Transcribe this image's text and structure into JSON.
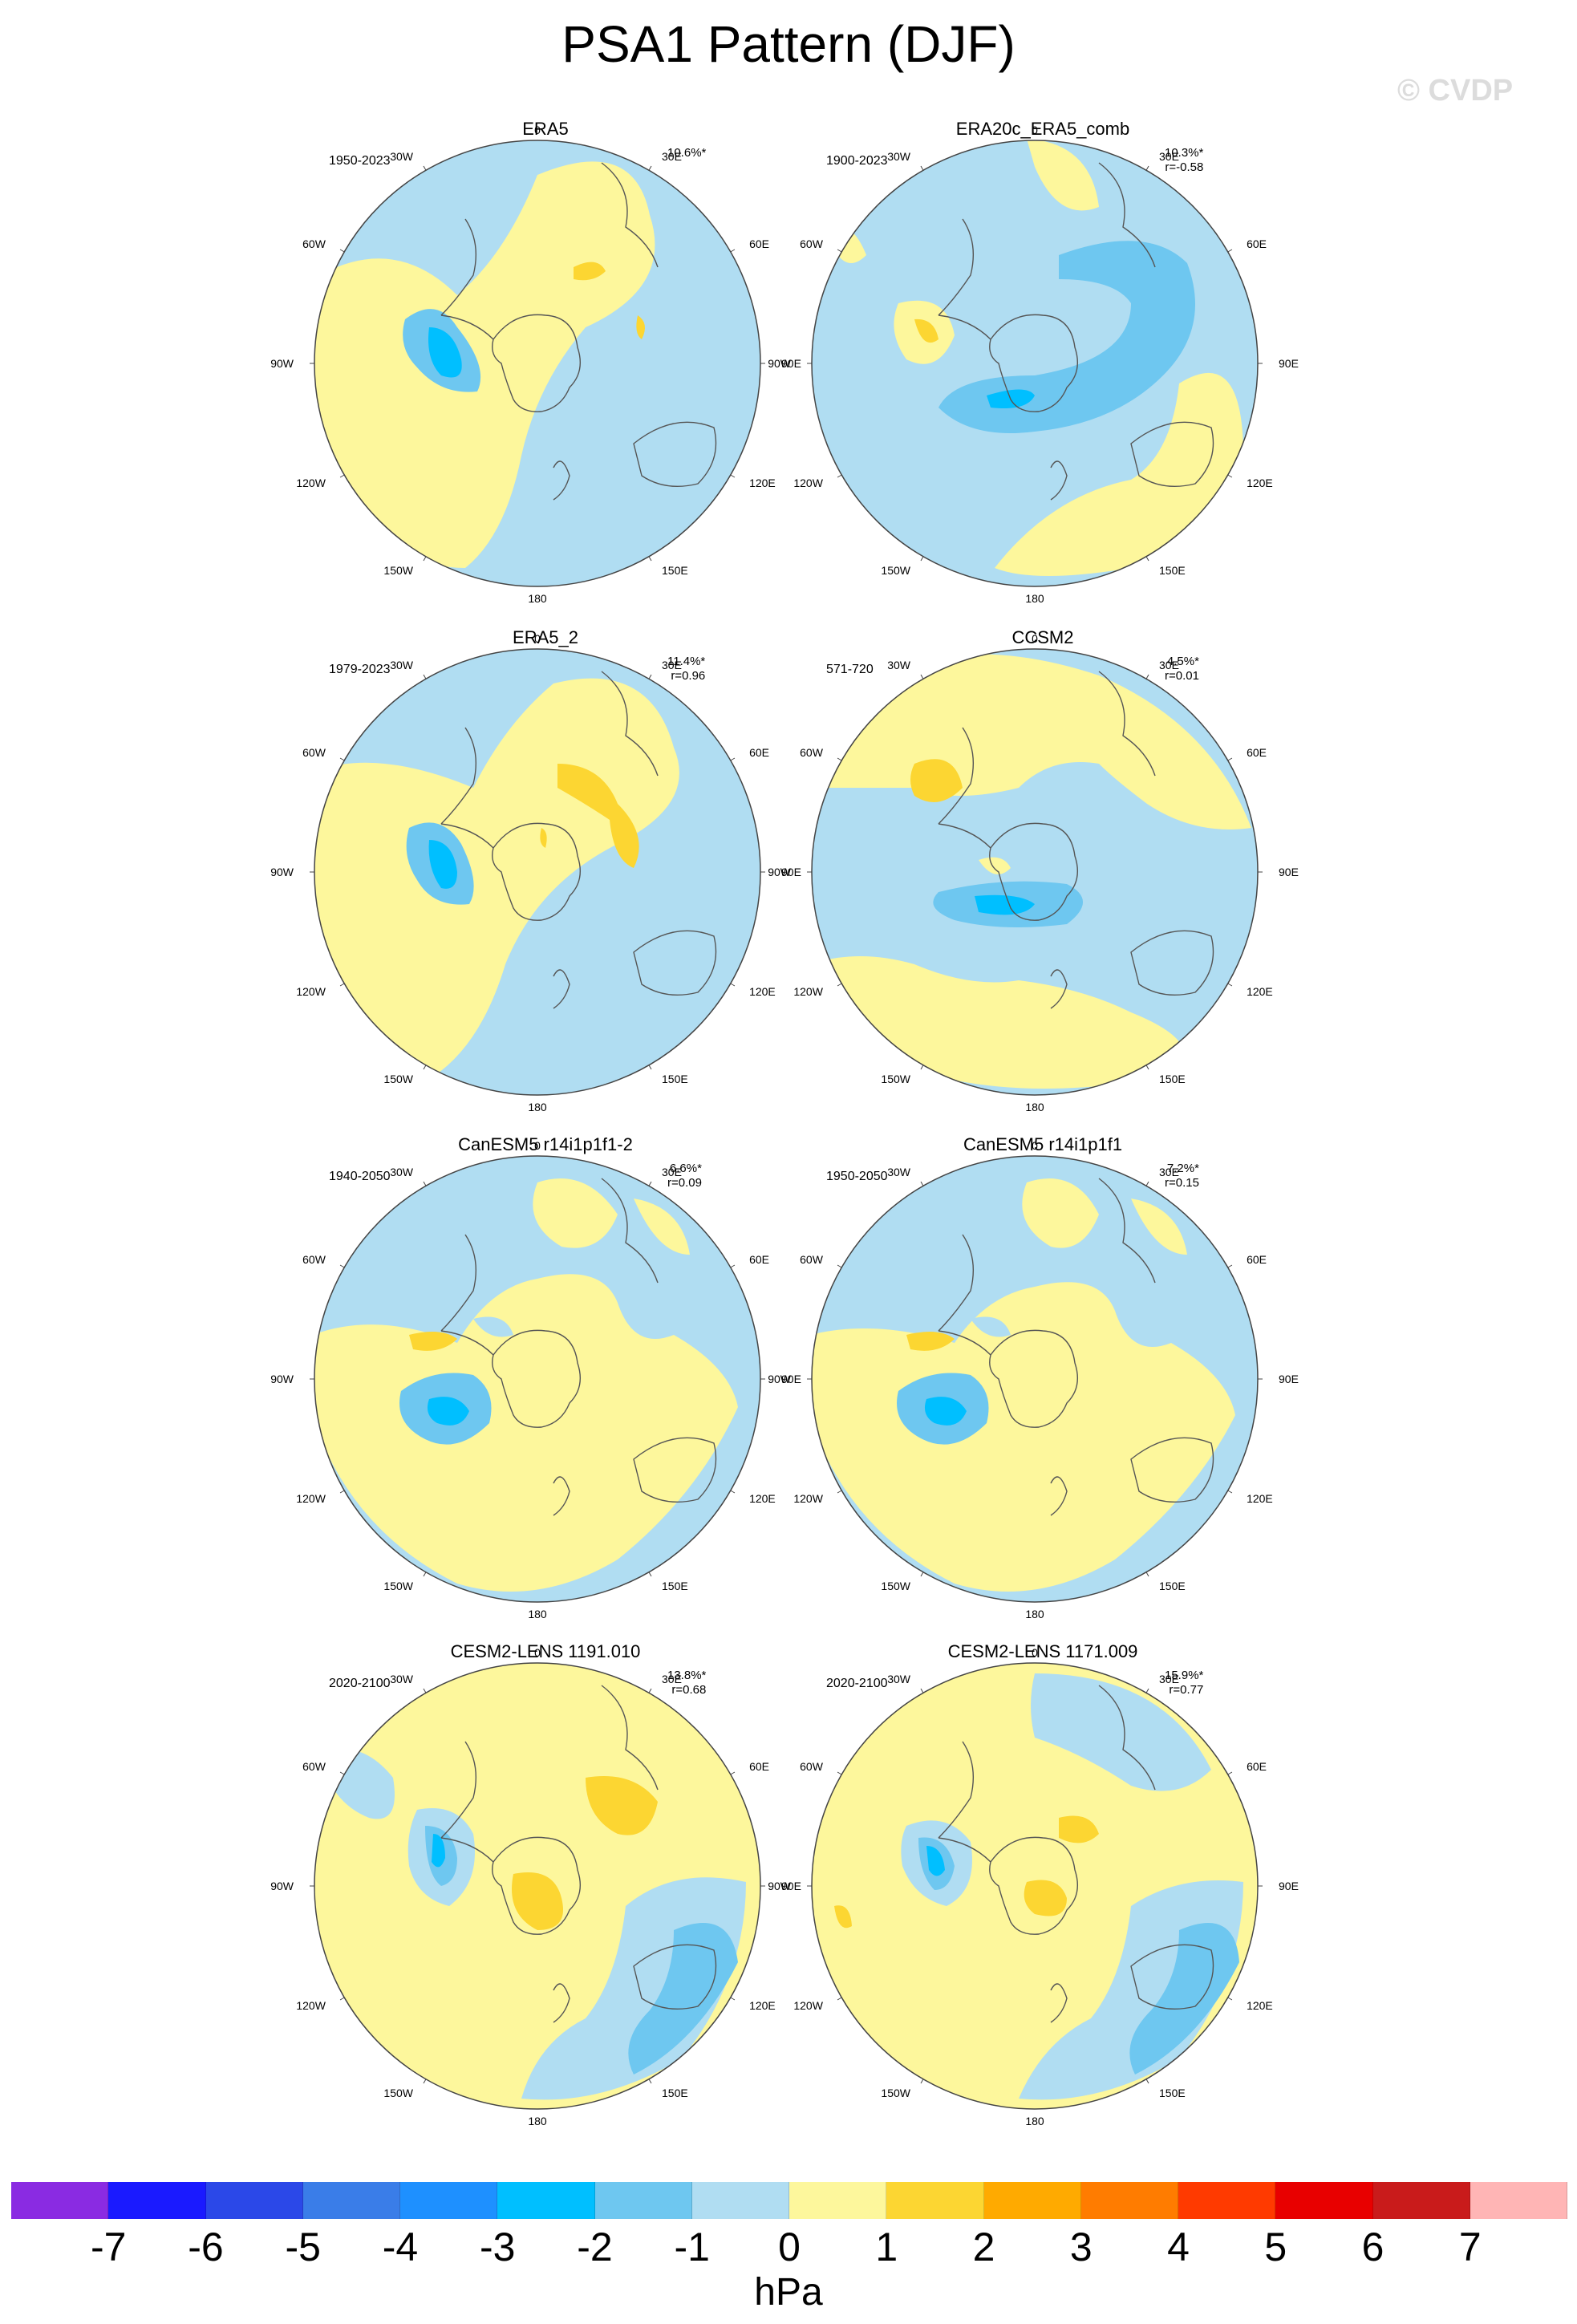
{
  "title": "PSA1 Pattern (DJF)",
  "watermark": "© CVDP",
  "colors": {
    "land_outline": "#555555",
    "circle_border": "#444444",
    "levels": [
      "#8a2be2",
      "#1a1aff",
      "#2b48e8",
      "#3a7de8",
      "#1e90ff",
      "#00bfff",
      "#6ec7f0",
      "#b0ddf2",
      "#fdf79c",
      "#fcd632",
      "#ffaa00",
      "#ff7c00",
      "#ff3a00",
      "#e80000",
      "#c91b1b",
      "#ffb5b5"
    ]
  },
  "map_labels": {
    "top": "0",
    "bottom": "180",
    "right": [
      "30E",
      "60E",
      "90E",
      "120E",
      "150E"
    ],
    "left": [
      "30W",
      "60W",
      "90W",
      "120W",
      "150W"
    ]
  },
  "panels": [
    {
      "title": "ERA5",
      "years": "1950-2023",
      "pct": "10.6%*",
      "r": ""
    },
    {
      "title": "ERA20c_ERA5_comb",
      "years": "1900-2023",
      "pct": "10.3%*",
      "r": "r=-0.58"
    },
    {
      "title": "ERA5_2",
      "years": "1979-2023",
      "pct": "11.4%*",
      "r": "r=0.96"
    },
    {
      "title": "CCSM2",
      "years": "571-720",
      "pct": "4.5%*",
      "r": "r=0.01"
    },
    {
      "title": "CanESM5 r14i1p1f1-2",
      "years": "1940-2050",
      "pct": "6.6%*",
      "r": "r=0.09"
    },
    {
      "title": "CanESM5 r14i1p1f1",
      "years": "1950-2050",
      "pct": "7.2%*",
      "r": "r=0.15"
    },
    {
      "title": "CESM2-LENS 1191.010",
      "years": "2020-2100",
      "pct": "13.8%*",
      "r": "r=0.68"
    },
    {
      "title": "CESM2-LENS 1171.009",
      "years": "2020-2100",
      "pct": "15.9%*",
      "r": "r=0.77"
    }
  ],
  "colorbar": {
    "ticks": [
      "-7",
      "-6",
      "-5",
      "-4",
      "-3",
      "-2",
      "-1",
      "0",
      "1",
      "2",
      "3",
      "4",
      "5",
      "6",
      "7"
    ],
    "unit": "hPa"
  }
}
